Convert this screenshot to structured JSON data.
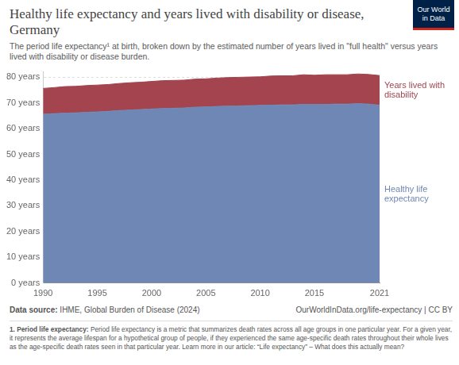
{
  "chart_data": {
    "type": "area",
    "title": "Healthy life expectancy and years lived with disability or disease, Germany",
    "subtitle": "The period life expectancy¹ at birth, broken down by the estimated number of years lived in \"full health\" versus years lived with disability or disease burden.",
    "logo": [
      "Our World",
      "in Data"
    ],
    "x": [
      1990,
      1991,
      1992,
      1993,
      1994,
      1995,
      1996,
      1997,
      1998,
      1999,
      2000,
      2001,
      2002,
      2003,
      2004,
      2005,
      2006,
      2007,
      2008,
      2009,
      2010,
      2011,
      2012,
      2013,
      2014,
      2015,
      2016,
      2017,
      2018,
      2019,
      2020,
      2021
    ],
    "series": [
      {
        "name": "Healthy life expectancy",
        "color": "#6f87b4",
        "values": [
          65.6,
          65.8,
          66.0,
          66.1,
          66.3,
          66.5,
          66.7,
          67.0,
          67.2,
          67.4,
          67.6,
          67.8,
          67.9,
          68.0,
          68.3,
          68.4,
          68.6,
          68.7,
          68.8,
          68.9,
          69.0,
          69.1,
          69.2,
          69.2,
          69.4,
          69.3,
          69.4,
          69.5,
          69.5,
          69.7,
          69.5,
          69.1
        ]
      },
      {
        "name": "Years lived with disability",
        "color": "#a3444f",
        "values": [
          10.0,
          10.1,
          10.3,
          10.3,
          10.4,
          10.4,
          10.4,
          10.5,
          10.6,
          10.6,
          10.7,
          10.8,
          10.8,
          10.8,
          10.9,
          10.9,
          11.0,
          11.1,
          11.1,
          11.1,
          11.1,
          11.3,
          11.3,
          11.3,
          11.5,
          11.4,
          11.5,
          11.4,
          11.4,
          11.5,
          11.5,
          11.5
        ]
      }
    ],
    "stacked": true,
    "xlim": [
      1990,
      2021
    ],
    "xticks": [
      1990,
      1995,
      2000,
      2005,
      2010,
      2015,
      2021
    ],
    "ylim": [
      0,
      82
    ],
    "yticks": [
      {
        "value": 0,
        "label": "0 years"
      },
      {
        "value": 10,
        "label": "10 years"
      },
      {
        "value": 20,
        "label": "20 years"
      },
      {
        "value": 30,
        "label": "30 years"
      },
      {
        "value": 40,
        "label": "40 years"
      },
      {
        "value": 50,
        "label": "50 years"
      },
      {
        "value": 60,
        "label": "60 years"
      },
      {
        "value": 70,
        "label": "70 years"
      },
      {
        "value": 80,
        "label": "80 years"
      }
    ],
    "grid": true,
    "source": {
      "label": "Data source:",
      "text": "IHME, Global Burden of Disease (2024)"
    },
    "credit": "OurWorldInData.org/life-expectancy | CC BY",
    "footnote": {
      "label": "1. Period life expectancy:",
      "text": "Period life expectancy is a metric that summarizes death rates across all age groups in one particular year. For a given year, it represents the average lifespan for a hypothetical group of people, if they experienced the same age-specific death rates throughout their whole lives as the age-specific death rates seen in that particular year. Learn more in our article: “Life expectancy” – What does this actually mean?"
    }
  }
}
